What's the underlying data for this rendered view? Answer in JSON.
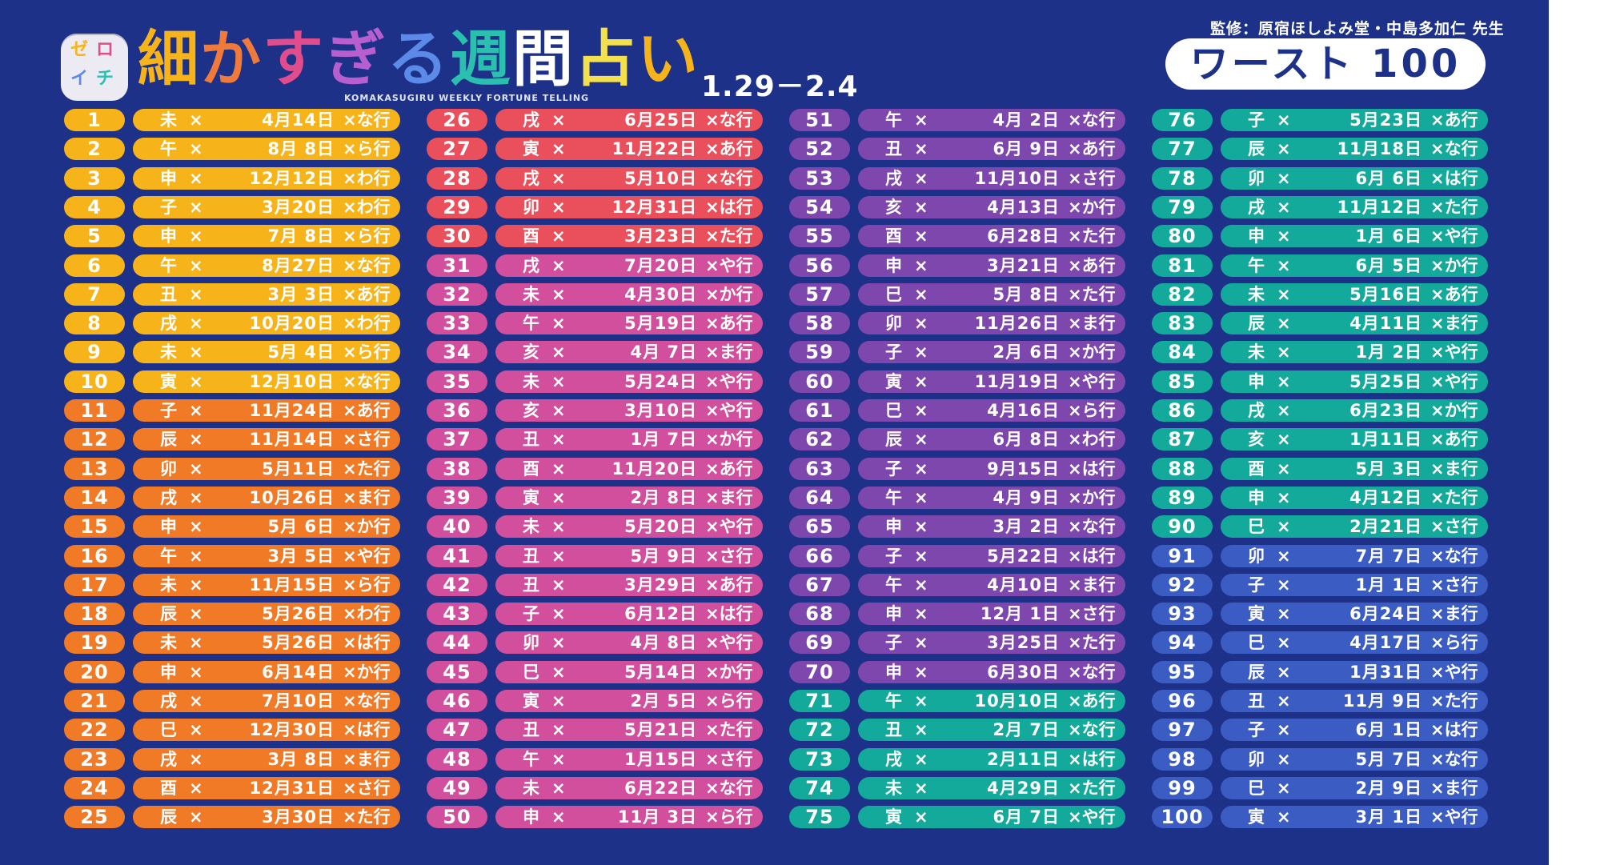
{
  "header": {
    "app_icon_text": "ゼロイチ",
    "title": "細かすぎる週間占い",
    "subtitle": "KOMAKASUGIRU WEEKLY FORTUNE TELLING",
    "date_range": "1.29－2.4",
    "supervisor": "監修：原宿ほしよみ堂・中島多加仁 先生",
    "badge": "ワースト 100"
  },
  "colors": {
    "background": "#1d3188",
    "yellow": "#f7b31a",
    "orange": "#f07a26",
    "red": "#ea4f5c",
    "pink": "#d24f9e",
    "purple": "#7e47ad",
    "teal": "#13a99b",
    "blue": "#3b5cc3"
  },
  "columns": [
    {
      "rows": [
        {
          "rank": "1",
          "zodiac": "未",
          "date": "4月14日",
          "gyo": "×な行"
        },
        {
          "rank": "2",
          "zodiac": "午",
          "date": "8月 8日",
          "gyo": "×ら行"
        },
        {
          "rank": "3",
          "zodiac": "申",
          "date": "12月12日",
          "gyo": "×わ行"
        },
        {
          "rank": "4",
          "zodiac": "子",
          "date": "3月20日",
          "gyo": "×わ行"
        },
        {
          "rank": "5",
          "zodiac": "申",
          "date": "7月 8日",
          "gyo": "×ら行"
        },
        {
          "rank": "6",
          "zodiac": "午",
          "date": "8月27日",
          "gyo": "×な行"
        },
        {
          "rank": "7",
          "zodiac": "丑",
          "date": "3月 3日",
          "gyo": "×あ行"
        },
        {
          "rank": "8",
          "zodiac": "戌",
          "date": "10月20日",
          "gyo": "×わ行"
        },
        {
          "rank": "9",
          "zodiac": "未",
          "date": "5月 4日",
          "gyo": "×ら行"
        },
        {
          "rank": "10",
          "zodiac": "寅",
          "date": "12月10日",
          "gyo": "×な行"
        },
        {
          "rank": "11",
          "zodiac": "子",
          "date": "11月24日",
          "gyo": "×あ行"
        },
        {
          "rank": "12",
          "zodiac": "辰",
          "date": "11月14日",
          "gyo": "×さ行"
        },
        {
          "rank": "13",
          "zodiac": "卯",
          "date": "5月11日",
          "gyo": "×た行"
        },
        {
          "rank": "14",
          "zodiac": "戌",
          "date": "10月26日",
          "gyo": "×ま行"
        },
        {
          "rank": "15",
          "zodiac": "申",
          "date": "5月 6日",
          "gyo": "×か行"
        },
        {
          "rank": "16",
          "zodiac": "午",
          "date": "3月 5日",
          "gyo": "×や行"
        },
        {
          "rank": "17",
          "zodiac": "未",
          "date": "11月15日",
          "gyo": "×ら行"
        },
        {
          "rank": "18",
          "zodiac": "辰",
          "date": "5月26日",
          "gyo": "×わ行"
        },
        {
          "rank": "19",
          "zodiac": "未",
          "date": "5月26日",
          "gyo": "×は行"
        },
        {
          "rank": "20",
          "zodiac": "申",
          "date": "6月14日",
          "gyo": "×か行"
        },
        {
          "rank": "21",
          "zodiac": "戌",
          "date": "7月10日",
          "gyo": "×な行"
        },
        {
          "rank": "22",
          "zodiac": "巳",
          "date": "12月30日",
          "gyo": "×は行"
        },
        {
          "rank": "23",
          "zodiac": "戌",
          "date": "3月 8日",
          "gyo": "×ま行"
        },
        {
          "rank": "24",
          "zodiac": "酉",
          "date": "12月31日",
          "gyo": "×さ行"
        },
        {
          "rank": "25",
          "zodiac": "辰",
          "date": "3月30日",
          "gyo": "×た行"
        }
      ]
    },
    {
      "rows": [
        {
          "rank": "26",
          "zodiac": "戌",
          "date": "6月25日",
          "gyo": "×な行"
        },
        {
          "rank": "27",
          "zodiac": "寅",
          "date": "11月22日",
          "gyo": "×あ行"
        },
        {
          "rank": "28",
          "zodiac": "戌",
          "date": "5月10日",
          "gyo": "×な行"
        },
        {
          "rank": "29",
          "zodiac": "卯",
          "date": "12月31日",
          "gyo": "×は行"
        },
        {
          "rank": "30",
          "zodiac": "酉",
          "date": "3月23日",
          "gyo": "×た行"
        },
        {
          "rank": "31",
          "zodiac": "戌",
          "date": "7月20日",
          "gyo": "×や行"
        },
        {
          "rank": "32",
          "zodiac": "未",
          "date": "4月30日",
          "gyo": "×か行"
        },
        {
          "rank": "33",
          "zodiac": "午",
          "date": "5月19日",
          "gyo": "×あ行"
        },
        {
          "rank": "34",
          "zodiac": "亥",
          "date": "4月 7日",
          "gyo": "×ま行"
        },
        {
          "rank": "35",
          "zodiac": "未",
          "date": "5月24日",
          "gyo": "×や行"
        },
        {
          "rank": "36",
          "zodiac": "亥",
          "date": "3月10日",
          "gyo": "×や行"
        },
        {
          "rank": "37",
          "zodiac": "丑",
          "date": "1月 7日",
          "gyo": "×か行"
        },
        {
          "rank": "38",
          "zodiac": "酉",
          "date": "11月20日",
          "gyo": "×あ行"
        },
        {
          "rank": "39",
          "zodiac": "寅",
          "date": "2月 8日",
          "gyo": "×ま行"
        },
        {
          "rank": "40",
          "zodiac": "未",
          "date": "5月20日",
          "gyo": "×や行"
        },
        {
          "rank": "41",
          "zodiac": "丑",
          "date": "5月 9日",
          "gyo": "×さ行"
        },
        {
          "rank": "42",
          "zodiac": "丑",
          "date": "3月29日",
          "gyo": "×あ行"
        },
        {
          "rank": "43",
          "zodiac": "子",
          "date": "6月12日",
          "gyo": "×は行"
        },
        {
          "rank": "44",
          "zodiac": "卯",
          "date": "4月 8日",
          "gyo": "×や行"
        },
        {
          "rank": "45",
          "zodiac": "巳",
          "date": "5月14日",
          "gyo": "×か行"
        },
        {
          "rank": "46",
          "zodiac": "寅",
          "date": "2月 5日",
          "gyo": "×ら行"
        },
        {
          "rank": "47",
          "zodiac": "丑",
          "date": "5月21日",
          "gyo": "×た行"
        },
        {
          "rank": "48",
          "zodiac": "午",
          "date": "1月15日",
          "gyo": "×さ行"
        },
        {
          "rank": "49",
          "zodiac": "未",
          "date": "6月22日",
          "gyo": "×な行"
        },
        {
          "rank": "50",
          "zodiac": "申",
          "date": "11月 3日",
          "gyo": "×ら行"
        }
      ]
    },
    {
      "rows": [
        {
          "rank": "51",
          "zodiac": "午",
          "date": "4月 2日",
          "gyo": "×な行"
        },
        {
          "rank": "52",
          "zodiac": "丑",
          "date": "6月 9日",
          "gyo": "×あ行"
        },
        {
          "rank": "53",
          "zodiac": "戌",
          "date": "11月10日",
          "gyo": "×さ行"
        },
        {
          "rank": "54",
          "zodiac": "亥",
          "date": "4月13日",
          "gyo": "×か行"
        },
        {
          "rank": "55",
          "zodiac": "酉",
          "date": "6月28日",
          "gyo": "×た行"
        },
        {
          "rank": "56",
          "zodiac": "申",
          "date": "3月21日",
          "gyo": "×あ行"
        },
        {
          "rank": "57",
          "zodiac": "巳",
          "date": "5月 8日",
          "gyo": "×た行"
        },
        {
          "rank": "58",
          "zodiac": "卯",
          "date": "11月26日",
          "gyo": "×ま行"
        },
        {
          "rank": "59",
          "zodiac": "子",
          "date": "2月 6日",
          "gyo": "×か行"
        },
        {
          "rank": "60",
          "zodiac": "寅",
          "date": "11月19日",
          "gyo": "×や行"
        },
        {
          "rank": "61",
          "zodiac": "巳",
          "date": "4月16日",
          "gyo": "×ら行"
        },
        {
          "rank": "62",
          "zodiac": "辰",
          "date": "6月 8日",
          "gyo": "×わ行"
        },
        {
          "rank": "63",
          "zodiac": "子",
          "date": "9月15日",
          "gyo": "×は行"
        },
        {
          "rank": "64",
          "zodiac": "午",
          "date": "4月 9日",
          "gyo": "×か行"
        },
        {
          "rank": "65",
          "zodiac": "申",
          "date": "3月 2日",
          "gyo": "×な行"
        },
        {
          "rank": "66",
          "zodiac": "子",
          "date": "5月22日",
          "gyo": "×は行"
        },
        {
          "rank": "67",
          "zodiac": "午",
          "date": "4月10日",
          "gyo": "×ま行"
        },
        {
          "rank": "68",
          "zodiac": "申",
          "date": "12月 1日",
          "gyo": "×さ行"
        },
        {
          "rank": "69",
          "zodiac": "子",
          "date": "3月25日",
          "gyo": "×た行"
        },
        {
          "rank": "70",
          "zodiac": "申",
          "date": "6月30日",
          "gyo": "×な行"
        },
        {
          "rank": "71",
          "zodiac": "午",
          "date": "10月10日",
          "gyo": "×あ行"
        },
        {
          "rank": "72",
          "zodiac": "丑",
          "date": "2月 7日",
          "gyo": "×な行"
        },
        {
          "rank": "73",
          "zodiac": "戌",
          "date": "2月11日",
          "gyo": "×は行"
        },
        {
          "rank": "74",
          "zodiac": "未",
          "date": "4月29日",
          "gyo": "×た行"
        },
        {
          "rank": "75",
          "zodiac": "寅",
          "date": "6月 7日",
          "gyo": "×や行"
        }
      ]
    },
    {
      "rows": [
        {
          "rank": "76",
          "zodiac": "子",
          "date": "5月23日",
          "gyo": "×あ行"
        },
        {
          "rank": "77",
          "zodiac": "辰",
          "date": "11月18日",
          "gyo": "×な行"
        },
        {
          "rank": "78",
          "zodiac": "卯",
          "date": "6月 6日",
          "gyo": "×は行"
        },
        {
          "rank": "79",
          "zodiac": "戌",
          "date": "11月12日",
          "gyo": "×た行"
        },
        {
          "rank": "80",
          "zodiac": "申",
          "date": "1月 6日",
          "gyo": "×や行"
        },
        {
          "rank": "81",
          "zodiac": "午",
          "date": "6月 5日",
          "gyo": "×か行"
        },
        {
          "rank": "82",
          "zodiac": "未",
          "date": "5月16日",
          "gyo": "×あ行"
        },
        {
          "rank": "83",
          "zodiac": "辰",
          "date": "4月11日",
          "gyo": "×ま行"
        },
        {
          "rank": "84",
          "zodiac": "未",
          "date": "1月 2日",
          "gyo": "×や行"
        },
        {
          "rank": "85",
          "zodiac": "申",
          "date": "5月25日",
          "gyo": "×や行"
        },
        {
          "rank": "86",
          "zodiac": "戌",
          "date": "6月23日",
          "gyo": "×か行"
        },
        {
          "rank": "87",
          "zodiac": "亥",
          "date": "1月11日",
          "gyo": "×あ行"
        },
        {
          "rank": "88",
          "zodiac": "酉",
          "date": "5月 3日",
          "gyo": "×ま行"
        },
        {
          "rank": "89",
          "zodiac": "申",
          "date": "4月12日",
          "gyo": "×た行"
        },
        {
          "rank": "90",
          "zodiac": "巳",
          "date": "2月21日",
          "gyo": "×さ行"
        },
        {
          "rank": "91",
          "zodiac": "卯",
          "date": "7月 7日",
          "gyo": "×な行"
        },
        {
          "rank": "92",
          "zodiac": "子",
          "date": "1月 1日",
          "gyo": "×さ行"
        },
        {
          "rank": "93",
          "zodiac": "寅",
          "date": "6月24日",
          "gyo": "×ま行"
        },
        {
          "rank": "94",
          "zodiac": "巳",
          "date": "4月17日",
          "gyo": "×ら行"
        },
        {
          "rank": "95",
          "zodiac": "辰",
          "date": "1月31日",
          "gyo": "×や行"
        },
        {
          "rank": "96",
          "zodiac": "丑",
          "date": "11月 9日",
          "gyo": "×た行"
        },
        {
          "rank": "97",
          "zodiac": "子",
          "date": "6月 1日",
          "gyo": "×は行"
        },
        {
          "rank": "98",
          "zodiac": "卯",
          "date": "5月 7日",
          "gyo": "×な行"
        },
        {
          "rank": "99",
          "zodiac": "巳",
          "date": "2月 9日",
          "gyo": "×ま行"
        },
        {
          "rank": "100",
          "zodiac": "寅",
          "date": "3月 1日",
          "gyo": "×や行"
        }
      ]
    }
  ]
}
